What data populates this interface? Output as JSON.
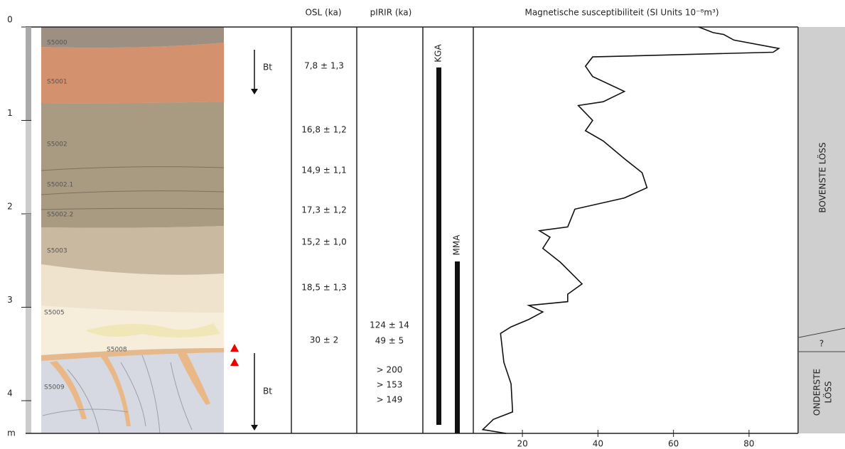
{
  "depth_axis": {
    "ylim": [
      0,
      4.35
    ],
    "yticks": [
      0,
      1,
      2,
      3,
      4
    ],
    "unit": "m"
  },
  "profile": {
    "layers": [
      "S5000",
      "S5001",
      "S5002",
      "S5002.1",
      "S5002.2",
      "S5003",
      "S5005",
      "S5008",
      "S5009"
    ],
    "arrows": [
      "Bt",
      "Bt"
    ]
  },
  "osl": {
    "title": "OSL (ka)",
    "values": [
      "7,8 ± 1,3",
      "16,8 ± 1,2",
      "14,9 ± 1,1",
      "17,3 ± 1,2",
      "15,2 ± 1,0",
      "18,5 ± 1,3",
      "30 ± 2"
    ]
  },
  "pirir": {
    "title": "pIRIR (ka)",
    "values": [
      "124 ± 14",
      "49 ± 5",
      "> 200",
      "> 153",
      "> 149"
    ]
  },
  "bars": [
    {
      "label": "KGA"
    },
    {
      "label": "MMA"
    }
  ],
  "susceptibility": {
    "title": "Magnetische susceptibiliteit (SI Units 10⁻⁸m³)",
    "depth": [
      0,
      0.06,
      0.08,
      0.14,
      0.23,
      0.27,
      0.32,
      0.42,
      0.53,
      0.69,
      0.8,
      0.84,
      1.0,
      1.11,
      1.22,
      1.41,
      1.56,
      1.72,
      1.83,
      1.95,
      2.14,
      2.18,
      2.25,
      2.37,
      2.52,
      2.75,
      2.86,
      2.94,
      2.98,
      3.05,
      3.13,
      3.21,
      3.28,
      3.59,
      3.82,
      4.12,
      4.2,
      4.31,
      4.35
    ],
    "values": [
      66.7,
      70.5,
      73.3,
      76,
      87.9,
      86.4,
      38.6,
      36.7,
      38.6,
      47,
      41.4,
      34.8,
      38.6,
      36.7,
      41.4,
      47,
      51.7,
      53,
      47,
      33.9,
      32,
      24.5,
      27.3,
      25.4,
      30.1,
      35.8,
      32,
      32,
      21.7,
      25.4,
      21.7,
      17,
      14.2,
      15.1,
      17,
      17.4,
      12.3,
      9.5,
      15.7
    ],
    "xlim": [
      7,
      93
    ],
    "xticks": [
      20,
      40,
      60,
      80
    ]
  },
  "units": {
    "upper": "BOVENSTE LÖSS",
    "question": "?",
    "lower": [
      "ONDERSTE",
      "LÖSS"
    ]
  }
}
